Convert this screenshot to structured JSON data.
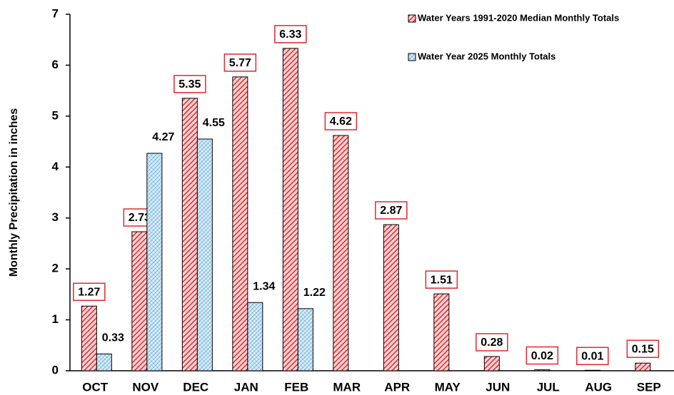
{
  "chart_data": {
    "type": "bar",
    "y_label": "Monthly Precipitation in inches",
    "categories": [
      "OCT",
      "NOV",
      "DEC",
      "JAN",
      "FEB",
      "MAR",
      "APR",
      "MAY",
      "JUN",
      "JUL",
      "AUG",
      "SEP"
    ],
    "series": [
      {
        "name": "Water Years 1991-2020 Median Monthly Totals",
        "color": "#e0282e",
        "values": [
          1.27,
          2.73,
          5.35,
          5.77,
          6.33,
          4.62,
          2.87,
          1.51,
          0.28,
          0.02,
          0.01,
          0.15
        ]
      },
      {
        "name": "Water Year 2025 Monthly Totals",
        "color": "#3d8fc4",
        "values": [
          0.33,
          4.27,
          4.55,
          1.34,
          1.22,
          null,
          null,
          null,
          null,
          null,
          null,
          null
        ]
      }
    ],
    "ylim": [
      0,
      7
    ],
    "yticks": [
      0,
      1,
      2,
      3,
      4,
      5,
      6,
      7
    ],
    "legend": "top-right"
  }
}
